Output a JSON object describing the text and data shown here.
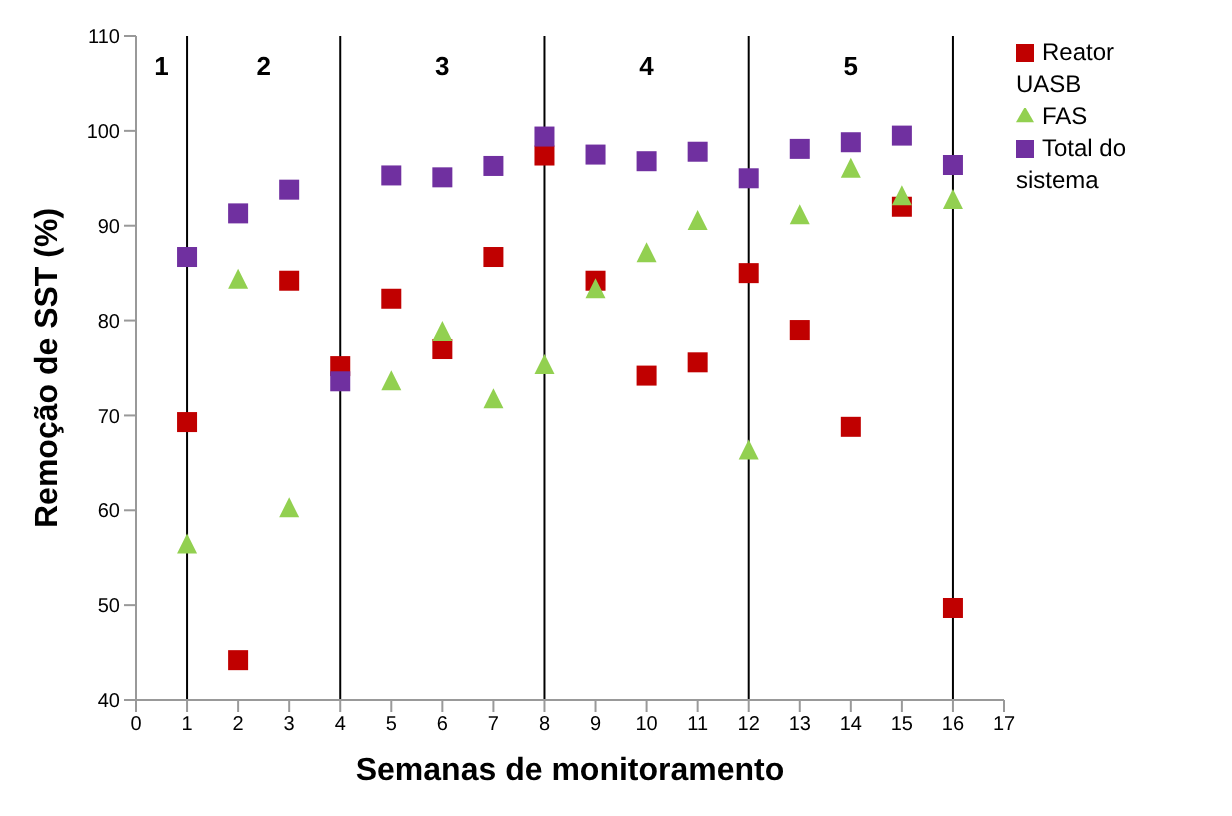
{
  "chart_data": {
    "type": "scatter",
    "xlabel": "Semanas de monitoramento",
    "ylabel": "Remoção de SST (%)",
    "x": [
      1,
      2,
      3,
      4,
      5,
      6,
      7,
      8,
      9,
      10,
      11,
      12,
      13,
      14,
      15,
      16
    ],
    "series": [
      {
        "name": "Reator UASB",
        "color": "#c00000",
        "marker": "square",
        "values": [
          69.3,
          44.2,
          84.2,
          75.2,
          82.3,
          77,
          86.7,
          97.4,
          84.2,
          74.2,
          75.6,
          85,
          79,
          68.8,
          92,
          49.7
        ]
      },
      {
        "name": "FAS",
        "color": "#92d050",
        "marker": "triangle",
        "values": [
          56.3,
          84.2,
          60.1,
          null,
          73.5,
          78.7,
          71.6,
          75.2,
          83.2,
          87,
          90.4,
          66.2,
          91,
          95.9,
          93,
          92.6
        ]
      },
      {
        "name": "Total do sistema",
        "color": "#7030a0",
        "marker": "square",
        "values": [
          86.7,
          91.3,
          93.8,
          73.6,
          95.3,
          95.1,
          96.3,
          99.4,
          97.5,
          96.8,
          97.8,
          95,
          98.1,
          98.8,
          99.5,
          96.4
        ]
      }
    ],
    "xlim": [
      0,
      17
    ],
    "xticks": [
      0,
      1,
      2,
      3,
      4,
      5,
      6,
      7,
      8,
      9,
      10,
      11,
      12,
      13,
      14,
      15,
      16,
      17
    ],
    "ylim": [
      40,
      110
    ],
    "yticks": [
      40,
      50,
      60,
      70,
      80,
      90,
      100,
      110
    ],
    "ref_lines": [
      {
        "axis": "x",
        "value": 1,
        "color": "#000000"
      },
      {
        "axis": "x",
        "value": 4,
        "color": "#000000"
      },
      {
        "axis": "x",
        "value": 8,
        "color": "#000000"
      },
      {
        "axis": "x",
        "value": 12,
        "color": "#000000"
      },
      {
        "axis": "x",
        "value": 16,
        "color": "#000000"
      }
    ],
    "annotations": [
      "1",
      "2",
      "3",
      "4",
      "5"
    ],
    "grid": false,
    "legend": "right"
  }
}
